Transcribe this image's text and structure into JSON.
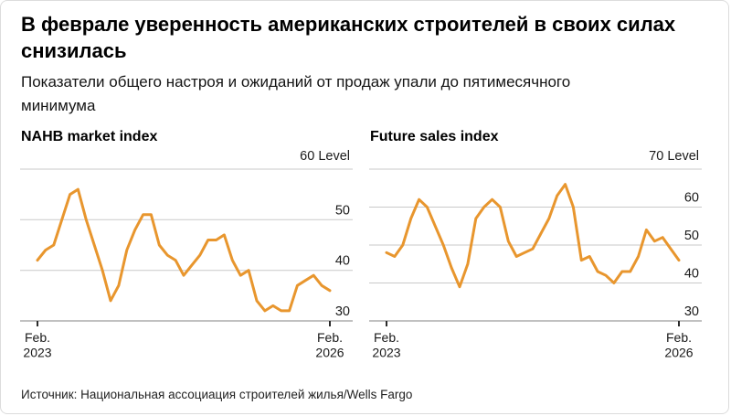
{
  "page": {
    "title": "В феврале уверенность американских строителей в своих силах снизилась",
    "subtitle": "Показатели общего настроя и ожиданий от продаж упали до пятимесячного минимума",
    "source": "Источник: Национальная ассоциация строителей жилья/Wells Fargo"
  },
  "colors": {
    "line": "#E8962E",
    "grid": "#C9C9C9",
    "baseline": "#9C9C9C",
    "tick": "#2B2B2B",
    "text": "#1A1A1A"
  },
  "chart_data": [
    {
      "type": "line",
      "title": "NAHB market index",
      "y_axis_top_label": "60 Level",
      "ylabel": "Level",
      "ylim": [
        30,
        60
      ],
      "y_ticks": [
        60,
        50,
        40,
        30
      ],
      "x_range": {
        "start": "Feb 2023",
        "end": "Feb 2026",
        "frequency": "monthly"
      },
      "x_start_label": [
        "Feb.",
        "2023"
      ],
      "x_end_label": [
        "Feb.",
        "2026"
      ],
      "grid": true,
      "legend": "none",
      "values": [
        42,
        44,
        45,
        50,
        55,
        56,
        50,
        45,
        40,
        34,
        37,
        44,
        48,
        51,
        51,
        45,
        43,
        42,
        39,
        41,
        43,
        46,
        46,
        47,
        42,
        39,
        40,
        34,
        32,
        33,
        32,
        32,
        37,
        38,
        39,
        37,
        36
      ]
    },
    {
      "type": "line",
      "title": "Future sales index",
      "y_axis_top_label": "70 Level",
      "ylabel": "Level",
      "ylim": [
        30,
        70
      ],
      "y_ticks": [
        70,
        60,
        50,
        40,
        30
      ],
      "x_range": {
        "start": "Feb 2023",
        "end": "Feb 2026",
        "frequency": "monthly"
      },
      "x_start_label": [
        "Feb.",
        "2023"
      ],
      "x_end_label": [
        "Feb.",
        "2026"
      ],
      "grid": true,
      "legend": "none",
      "values": [
        48,
        47,
        50,
        57,
        62,
        60,
        55,
        50,
        44,
        39,
        45,
        57,
        60,
        62,
        60,
        51,
        47,
        48,
        49,
        53,
        57,
        63,
        66,
        60,
        46,
        47,
        43,
        42,
        40,
        43,
        43,
        47,
        54,
        51,
        52,
        49,
        46
      ]
    }
  ]
}
